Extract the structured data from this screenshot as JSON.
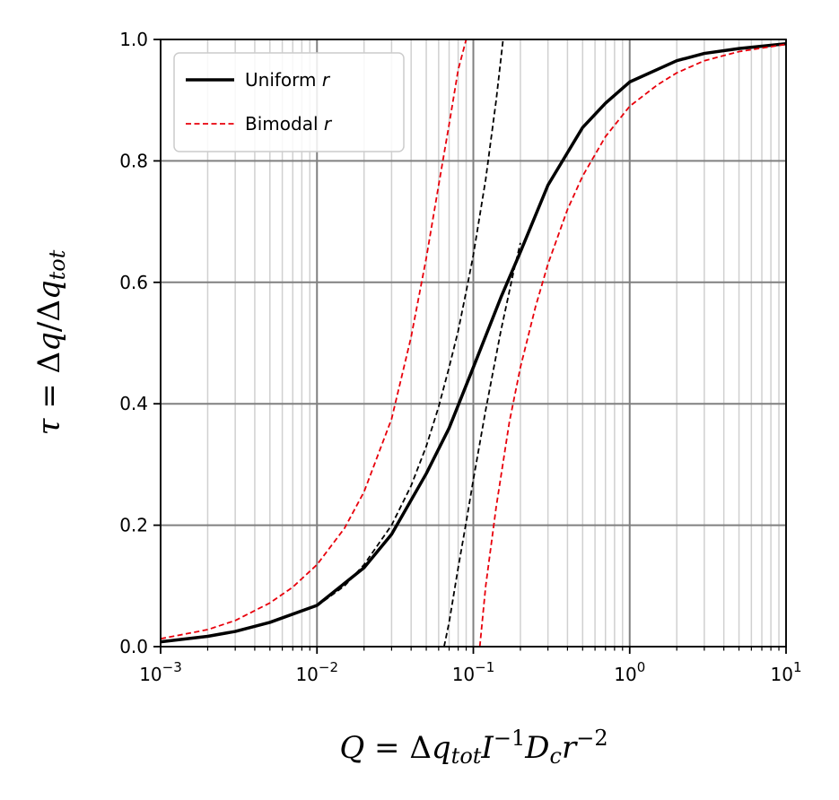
{
  "chart_data": {
    "type": "line",
    "xscale": "log",
    "xlim": [
      0.001,
      10
    ],
    "ylim": [
      0,
      1
    ],
    "grid": true,
    "legend_position": "upper-left",
    "xlabel_parts": {
      "q": "Q",
      "eq": " = Δ",
      "qsub": "q",
      "tot": "tot",
      "I": "I",
      "exp1": "−1",
      "D": "D",
      "c": "c",
      "r": "r",
      "exp2": "−2"
    },
    "ylabel_parts": {
      "tau": "τ",
      "mid": " = Δ",
      "q": "q",
      "slash": "/Δ",
      "q2": "q",
      "tot": "tot"
    },
    "x_ticks": [
      {
        "value": 0.001,
        "base": "10",
        "exp": "−3"
      },
      {
        "value": 0.01,
        "base": "10",
        "exp": "−2"
      },
      {
        "value": 0.1,
        "base": "10",
        "exp": "−1"
      },
      {
        "value": 1,
        "base": "10",
        "exp": "0"
      },
      {
        "value": 10,
        "base": "10",
        "exp": "1"
      }
    ],
    "y_ticks": [
      {
        "value": 0.0,
        "label": "0.0"
      },
      {
        "value": 0.2,
        "label": "0.2"
      },
      {
        "value": 0.4,
        "label": "0.4"
      },
      {
        "value": 0.6,
        "label": "0.6"
      },
      {
        "value": 0.8,
        "label": "0.8"
      },
      {
        "value": 1.0,
        "label": "1.0"
      }
    ],
    "series": [
      {
        "name": "Uniform",
        "name_italic": "r",
        "color": "#000000",
        "style": "solid",
        "x": [
          0.001,
          0.002,
          0.003,
          0.005,
          0.01,
          0.02,
          0.03,
          0.05,
          0.07,
          0.1,
          0.15,
          0.2,
          0.3,
          0.5,
          0.7,
          1,
          2,
          3,
          5,
          10
        ],
        "y": [
          0.008,
          0.017,
          0.025,
          0.04,
          0.068,
          0.13,
          0.185,
          0.285,
          0.36,
          0.46,
          0.575,
          0.65,
          0.76,
          0.855,
          0.895,
          0.93,
          0.965,
          0.977,
          0.985,
          0.993
        ]
      },
      {
        "name": "Bimodal",
        "name_italic": "r",
        "color": "#e8000b",
        "style": "dashed",
        "segments": [
          {
            "x": [
              0.001,
              0.002,
              0.003,
              0.005,
              0.007,
              0.01,
              0.015,
              0.02,
              0.03,
              0.04,
              0.05,
              0.06,
              0.07,
              0.08,
              0.09
            ],
            "y": [
              0.013,
              0.028,
              0.043,
              0.072,
              0.098,
              0.135,
              0.195,
              0.255,
              0.375,
              0.51,
              0.64,
              0.76,
              0.86,
              0.95,
              1.0
            ]
          },
          {
            "x": [
              0.11,
              0.12,
              0.14,
              0.17,
              0.2,
              0.25,
              0.3,
              0.4,
              0.5,
              0.7,
              1,
              1.5,
              2,
              3,
              5,
              10
            ],
            "y": [
              0.0,
              0.1,
              0.23,
              0.37,
              0.46,
              0.56,
              0.63,
              0.72,
              0.775,
              0.84,
              0.89,
              0.925,
              0.945,
              0.965,
              0.98,
              0.992
            ]
          }
        ]
      },
      {
        "style": "dashed",
        "color": "#000000",
        "segments": [
          {
            "x": [
              0.01,
              0.015,
              0.02,
              0.03,
              0.04,
              0.05,
              0.06,
              0.07,
              0.08,
              0.09,
              0.1,
              0.12,
              0.14,
              0.155
            ],
            "y": [
              0.067,
              0.1,
              0.135,
              0.2,
              0.265,
              0.33,
              0.395,
              0.46,
              0.52,
              0.585,
              0.645,
              0.77,
              0.9,
              1.0
            ]
          },
          {
            "x": [
              0.065,
              0.07,
              0.08,
              0.09,
              0.1,
              0.12,
              0.15,
              0.18,
              0.2
            ],
            "y": [
              0.0,
              0.04,
              0.13,
              0.205,
              0.275,
              0.39,
              0.52,
              0.615,
              0.665
            ]
          }
        ]
      }
    ]
  }
}
